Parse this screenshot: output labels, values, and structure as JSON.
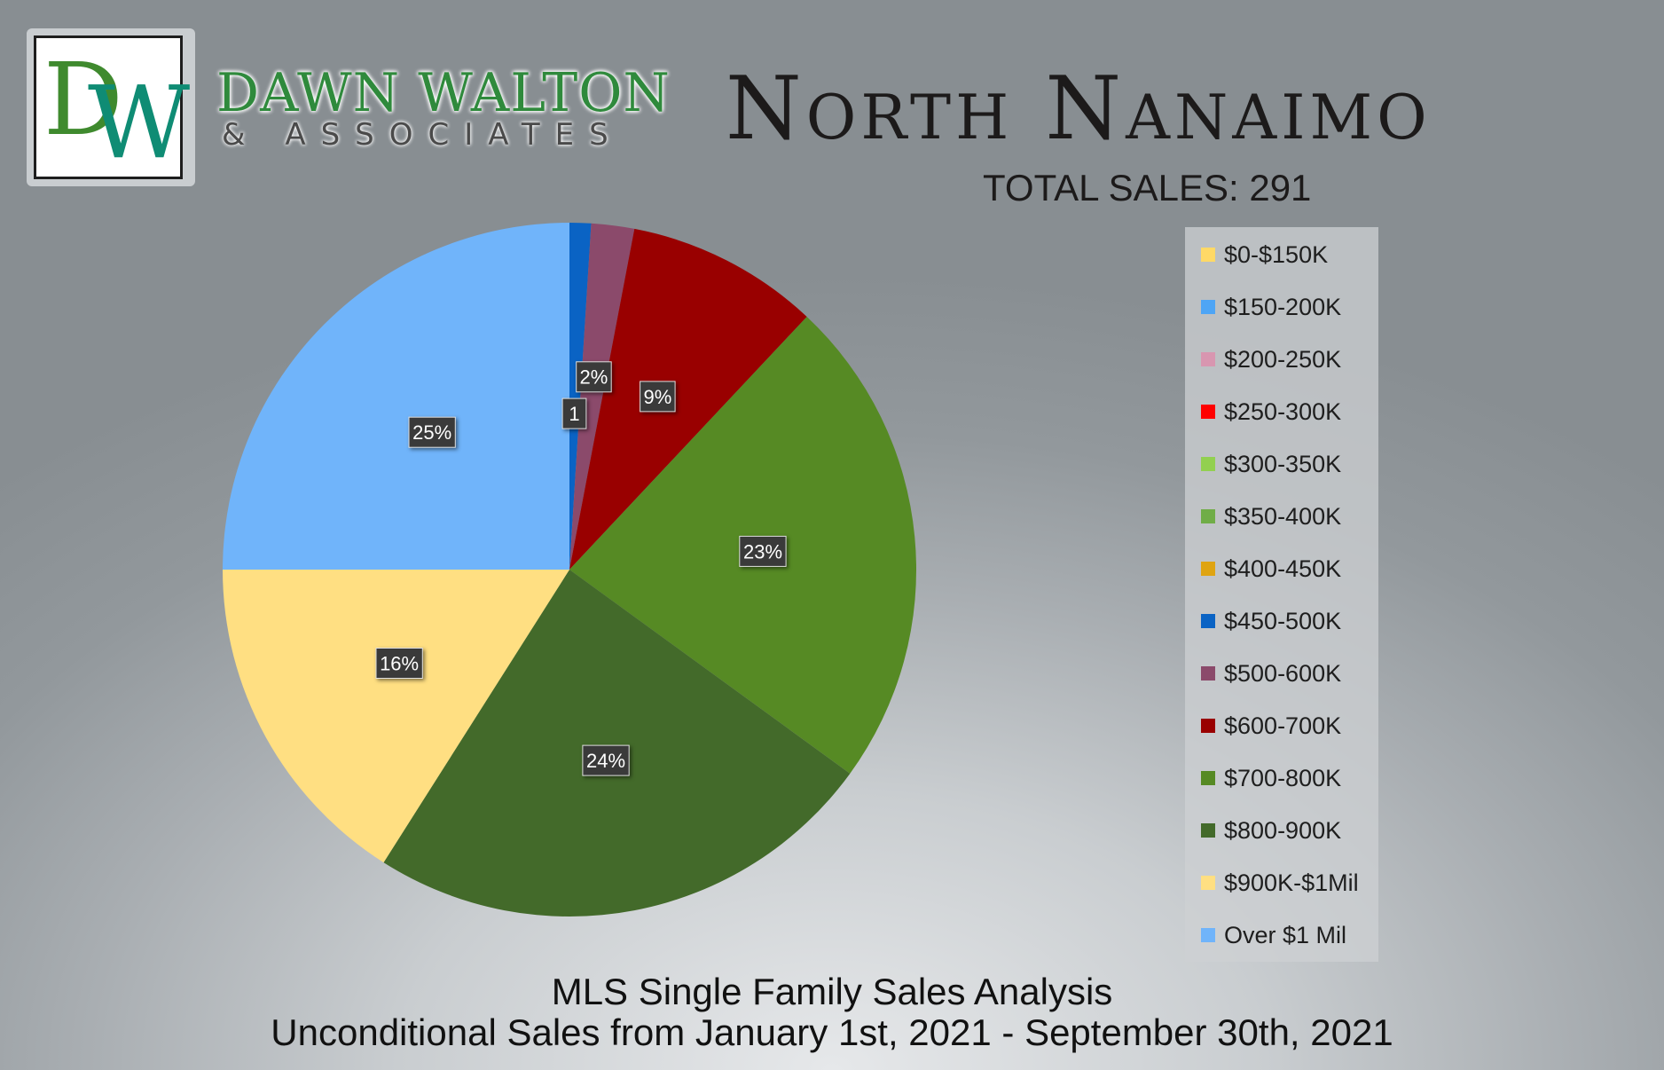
{
  "brand": {
    "logo_d": "D",
    "logo_w": "W",
    "name": "DAWN WALTON",
    "sub": "& ASSOCIATES",
    "colors": {
      "green": "#3f8a2e",
      "teal": "#0f8c74"
    }
  },
  "header": {
    "title": "North Nanaimo",
    "total_sales": "TOTAL SALES: 291"
  },
  "footer": {
    "line1": "MLS Single Family Sales Analysis",
    "line2": "Unconditional Sales from January 1st, 2021 - September 30th, 2021"
  },
  "chart_data": {
    "type": "pie",
    "title": "",
    "legend_position": "right",
    "categories": [
      "$0-$150K",
      "$150-200K",
      "$200-250K",
      "$250-300K",
      "$300-350K",
      "$350-400K",
      "$400-450K",
      "$450-500K",
      "$500-600K",
      "$600-700K",
      "$700-800K",
      "$800-900K",
      "$900K-$1Mil",
      "Over $1 Mil"
    ],
    "values": [
      0,
      0,
      0,
      0,
      0,
      0,
      0,
      1,
      2,
      9,
      23,
      24,
      16,
      25
    ],
    "data_labels": [
      "",
      "",
      "",
      "",
      "",
      "",
      "",
      "1",
      "2%",
      "9%",
      "23%",
      "24%",
      "16%",
      "25%"
    ],
    "colors": [
      "#ffd966",
      "#4ea5f5",
      "#d896b0",
      "#ff0000",
      "#92d050",
      "#70ad47",
      "#dfa412",
      "#0a63c4",
      "#8b4a6b",
      "#990000",
      "#568a24",
      "#436a2a",
      "#ffdf82",
      "#70b4fa"
    ]
  }
}
